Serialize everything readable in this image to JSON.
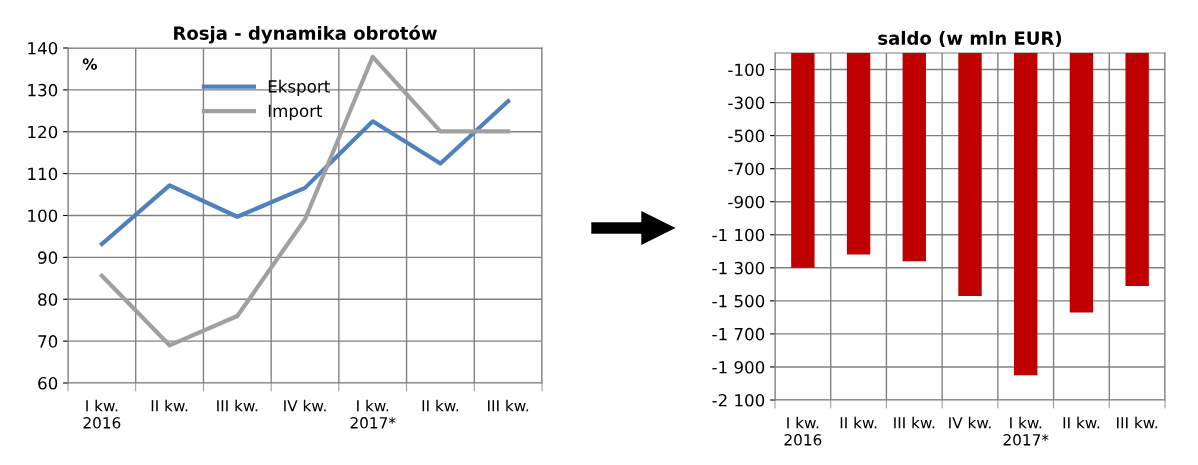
{
  "chart_data": [
    {
      "type": "line",
      "title": "Rosja - dynamika obrotów",
      "ylabel": "%",
      "categories": [
        "I kw.\n2016",
        "II kw.",
        "III kw.",
        "IV kw.",
        "I kw.\n2017*",
        "II kw.",
        "III kw."
      ],
      "series": [
        {
          "name": "Eksport",
          "color": "#4f81bd",
          "values": [
            93.2,
            107.2,
            99.7,
            106.6,
            122.5,
            112.4,
            127.3
          ]
        },
        {
          "name": "Import",
          "color": "#a0a0a0",
          "values": [
            85.6,
            69.0,
            76.0,
            99.1,
            137.9,
            120.1,
            120.1
          ]
        }
      ],
      "ylim": [
        60,
        140
      ],
      "yticks": [
        60,
        70,
        80,
        90,
        100,
        110,
        120,
        130,
        140
      ],
      "grid": true,
      "legend": "top"
    },
    {
      "type": "bar",
      "title": "saldo (w mln EUR)",
      "categories": [
        "I kw.\n2016",
        "II kw.",
        "III kw.",
        "IV kw.",
        "I kw.\n2017*",
        "II kw.",
        "III kw."
      ],
      "values": [
        -1300,
        -1220,
        -1260,
        -1470,
        -1950,
        -1570,
        -1410
      ],
      "color": "#c00000",
      "ylim": [
        -2100,
        0
      ],
      "yticks": [
        -100,
        -300,
        -500,
        -700,
        -900,
        {
          "value": -1100,
          "label": "-1 100"
        },
        {
          "value": -1300,
          "label": "-1 300"
        },
        {
          "value": -1500,
          "label": "-1 500"
        },
        {
          "value": -1700,
          "label": "-1 700"
        },
        {
          "value": -1900,
          "label": "-1 900"
        },
        {
          "value": -2100,
          "label": "-2 100"
        }
      ],
      "grid": true
    }
  ]
}
